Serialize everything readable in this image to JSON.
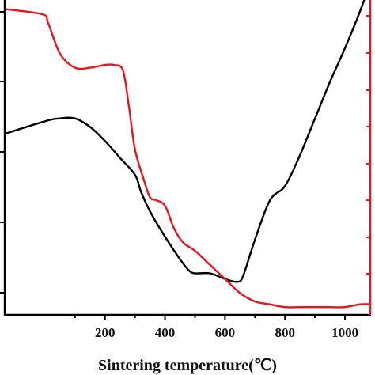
{
  "chart_data": {
    "type": "line",
    "title": "",
    "xlabel": "Sintering temperature(℃)",
    "ylabel": "",
    "xlim": [
      -150,
      1100
    ],
    "x_ticks": [
      200,
      400,
      600,
      800,
      1000
    ],
    "grid": false,
    "legend": "none",
    "series": [
      {
        "color": "#000000",
        "axis": "left",
        "ylim": [
          0,
          100
        ],
        "x": [
          -150,
          0,
          50,
          100,
          150,
          200,
          250,
          300,
          320,
          350,
          400,
          450,
          480,
          500,
          550,
          600,
          640,
          660,
          700,
          750,
          800,
          850,
          900,
          950,
          1000,
          1050,
          1100
        ],
        "values": [
          57,
          62,
          63,
          63,
          60,
          55,
          49,
          43,
          37,
          30,
          21,
          13,
          9,
          8,
          8,
          6,
          5,
          7,
          20,
          34,
          39,
          50,
          63,
          76,
          88,
          101,
          116
        ]
      },
      {
        "color": "#e8141c",
        "axis": "right",
        "ylim": [
          0,
          100
        ],
        "x": [
          -150,
          -10,
          10,
          50,
          100,
          150,
          200,
          230,
          260,
          280,
          300,
          330,
          350,
          370,
          400,
          430,
          460,
          500,
          550,
          600,
          650,
          700,
          750,
          800,
          850,
          900,
          950,
          1000,
          1050,
          1100
        ],
        "values": [
          102,
          100,
          97,
          86,
          81,
          81,
          82,
          82,
          80,
          67,
          52,
          41,
          35,
          34,
          32,
          24,
          19,
          16,
          11,
          6,
          1,
          -2,
          -3,
          -4,
          -4,
          -4,
          -4,
          -4,
          -3,
          -3
        ]
      }
    ]
  }
}
